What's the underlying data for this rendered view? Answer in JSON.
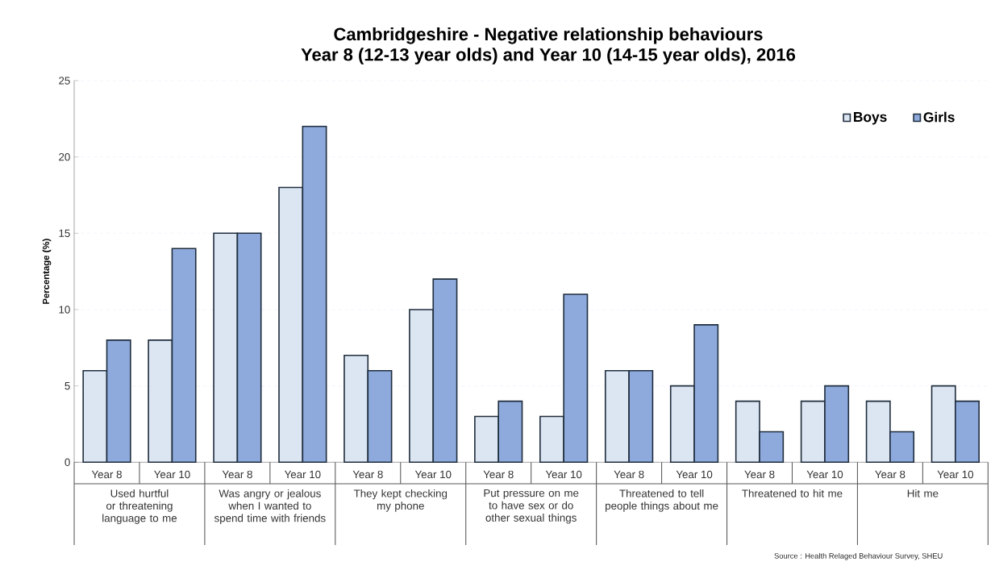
{
  "chart_data": {
    "type": "bar",
    "title": "Cambridgeshire - Negative relationship behaviours",
    "subtitle": "Year 8 (12-13 year olds) and Year 10 (14-15 year olds), 2016",
    "ylabel": "Percentage (%)",
    "categories": [
      "Year 8",
      "Year 10",
      "Year 8",
      "Year 10",
      "Year 8",
      "Year 10",
      "Year 8",
      "Year 10",
      "Year 8",
      "Year 10",
      "Year 8",
      "Year 10",
      "Year 8",
      "Year 10"
    ],
    "series": [
      {
        "name": "Boys",
        "color": "#dce6f2",
        "values": [
          6,
          8,
          15,
          18,
          7,
          10,
          3,
          3,
          6,
          5,
          4,
          4,
          4,
          5
        ]
      },
      {
        "name": "Girls",
        "color": "#8eaadc",
        "values": [
          8,
          14,
          15,
          22,
          6,
          12,
          4,
          11,
          6,
          9,
          2,
          5,
          2,
          4
        ]
      }
    ],
    "ylim": [
      0,
      25
    ],
    "yticks": [
      0,
      5,
      10,
      15,
      20,
      25
    ],
    "grid": "y",
    "legend": "top right",
    "annotations": [
      "Used hurtful or threatening language to me",
      "Was angry or jealous when I wanted to spend time with friends",
      "They kept checking my phone",
      "Put pressure on me to have sex or do other sexual things",
      "Threatened to tell people things about me",
      "Threatened to hit me",
      "Hit me",
      "Source : Health Relaged Behaviour Survey, SHEU"
    ]
  }
}
